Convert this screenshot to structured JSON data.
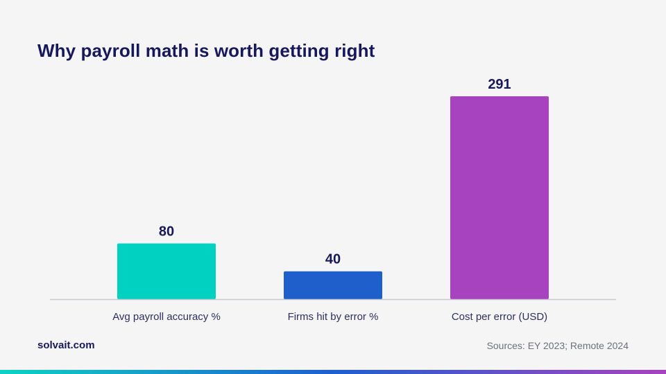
{
  "brand": "solvait.com",
  "sources": "Sources: EY 2023; Remote 2024",
  "colors": {
    "title": "#17185a",
    "axis": "#c8c9ce",
    "tick_label": "#2d2f5c",
    "stripe_start": "#0dd3c2",
    "stripe_mid": "#1e5fcf",
    "stripe_end": "#a843bf"
  },
  "chart_data": {
    "type": "bar",
    "title": "Why payroll math is worth getting right",
    "categories": [
      "Avg payroll accuracy %",
      "Firms hit by error %",
      "Cost per error (USD)"
    ],
    "values": [
      80,
      40,
      291
    ],
    "bar_colors": [
      "#00d1c1",
      "#1f5fcc",
      "#a843bf"
    ],
    "data_labels": [
      "80",
      "40",
      "291"
    ],
    "xlabel": "",
    "ylabel": "",
    "ylim": [
      0,
      291
    ],
    "grid": false,
    "legend": "none"
  }
}
